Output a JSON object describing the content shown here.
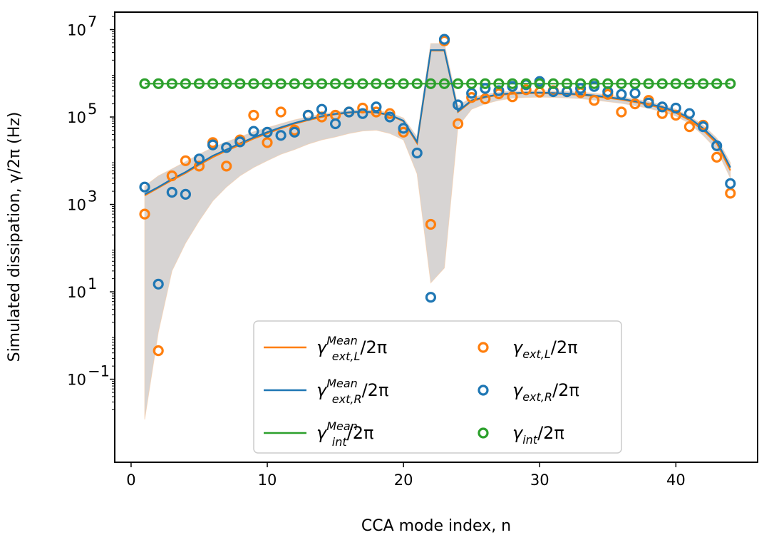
{
  "chart_data": {
    "type": "scatter",
    "xlabel": "CCA mode index, n",
    "ylabel": "Simulated dissipation, γ/2π (Hz)",
    "xlim": [
      -1.2,
      46
    ],
    "xticks": [
      0,
      10,
      20,
      30,
      40
    ],
    "ylim_log10": [
      -2.9,
      7.4
    ],
    "ytick_exponents": [
      -1,
      1,
      3,
      5,
      7
    ],
    "colors": {
      "orange": "#ff7f0e",
      "blue": "#1f77b4",
      "green": "#2ca02c",
      "band": "#8c8580"
    },
    "legend": {
      "location": "lower-center",
      "entries": [
        {
          "id": "mean_L",
          "marker": "line",
          "color": "#ff7f0e",
          "label": "γ_ext,L^Mean/2π"
        },
        {
          "id": "mean_R",
          "marker": "line",
          "color": "#1f77b4",
          "label": "γ_ext,R^Mean/2π"
        },
        {
          "id": "mean_int",
          "marker": "line",
          "color": "#2ca02c",
          "label": "γ_int^Mean/2π"
        },
        {
          "id": "ext_L",
          "marker": "circle",
          "color": "#ff7f0e",
          "label": "γ_ext,L/2π"
        },
        {
          "id": "ext_R",
          "marker": "circle",
          "color": "#1f77b4",
          "label": "γ_ext,R/2π"
        },
        {
          "id": "int",
          "marker": "circle",
          "color": "#2ca02c",
          "label": "γ_int/2π"
        }
      ]
    },
    "series": [
      {
        "name": "γ_ext,L/2π",
        "kind": "scatter",
        "color": "#ff7f0e",
        "x": [
          1,
          2,
          3,
          4,
          5,
          6,
          7,
          8,
          9,
          10,
          11,
          12,
          13,
          14,
          15,
          16,
          17,
          18,
          19,
          20,
          22,
          23,
          24,
          25,
          26,
          27,
          28,
          29,
          30,
          31,
          32,
          33,
          34,
          35,
          36,
          37,
          38,
          39,
          40,
          41,
          42,
          43,
          44
        ],
        "y": [
          600,
          0.45,
          4500,
          10000,
          7500,
          26000,
          7500,
          30000,
          110000,
          26000,
          130000,
          50000,
          110000,
          100000,
          110000,
          130000,
          160000,
          130000,
          120000,
          45000,
          350,
          5500000,
          70000,
          280000,
          260000,
          340000,
          290000,
          420000,
          370000,
          400000,
          380000,
          360000,
          240000,
          330000,
          130000,
          200000,
          240000,
          120000,
          110000,
          60000,
          65000,
          12000,
          1800
        ]
      },
      {
        "name": "γ_ext,R/2π",
        "kind": "scatter",
        "color": "#1f77b4",
        "x": [
          1,
          2,
          3,
          4,
          5,
          6,
          7,
          8,
          9,
          10,
          11,
          12,
          13,
          14,
          15,
          16,
          17,
          18,
          19,
          20,
          21,
          22,
          23,
          24,
          25,
          26,
          27,
          28,
          29,
          30,
          31,
          32,
          33,
          34,
          35,
          36,
          37,
          38,
          39,
          40,
          41,
          42,
          43,
          44
        ],
        "y": [
          2500,
          15,
          1900,
          1700,
          11000,
          23000,
          20000,
          27000,
          47000,
          45000,
          38000,
          45000,
          110000,
          150000,
          70000,
          130000,
          120000,
          170000,
          100000,
          55000,
          15000,
          7.5,
          6000000,
          190000,
          350000,
          450000,
          400000,
          500000,
          550000,
          650000,
          380000,
          380000,
          450000,
          500000,
          380000,
          330000,
          350000,
          210000,
          170000,
          160000,
          120000,
          60000,
          22000,
          3000
        ]
      },
      {
        "name": "γ_int/2π",
        "kind": "scatter",
        "color": "#2ca02c",
        "x": [
          1,
          2,
          3,
          4,
          5,
          6,
          7,
          8,
          9,
          10,
          11,
          12,
          13,
          14,
          15,
          16,
          17,
          18,
          19,
          20,
          21,
          22,
          23,
          24,
          25,
          26,
          27,
          28,
          29,
          30,
          31,
          32,
          33,
          34,
          35,
          36,
          37,
          38,
          39,
          40,
          41,
          42,
          43,
          44
        ],
        "y": [
          580000,
          580000,
          580000,
          580000,
          580000,
          580000,
          580000,
          580000,
          580000,
          580000,
          580000,
          580000,
          580000,
          580000,
          580000,
          580000,
          580000,
          580000,
          580000,
          580000,
          580000,
          580000,
          580000,
          580000,
          580000,
          580000,
          580000,
          580000,
          580000,
          580000,
          580000,
          580000,
          580000,
          580000,
          580000,
          580000,
          580000,
          580000,
          580000,
          580000,
          580000,
          580000,
          580000,
          580000
        ]
      },
      {
        "name": "γ_ext,L^Mean/2π",
        "kind": "line",
        "color": "#ff7f0e",
        "x": [
          1,
          2,
          3,
          4,
          5,
          6,
          7,
          8,
          9,
          10,
          11,
          12,
          13,
          14,
          15,
          16,
          17,
          18,
          19,
          20,
          21,
          22,
          23,
          24,
          25,
          26,
          27,
          28,
          29,
          30,
          31,
          32,
          33,
          34,
          35,
          36,
          37,
          38,
          39,
          40,
          41,
          42,
          43,
          44
        ],
        "y": [
          1600,
          2400,
          3600,
          5200,
          8000,
          12000,
          17000,
          23000,
          32000,
          42000,
          55000,
          70000,
          85000,
          100000,
          115000,
          125000,
          130000,
          125000,
          110000,
          80000,
          25000,
          3300000,
          3300000,
          130000,
          230000,
          280000,
          320000,
          340000,
          350000,
          350000,
          345000,
          335000,
          320000,
          300000,
          275000,
          250000,
          220000,
          190000,
          160000,
          125000,
          85000,
          50000,
          25000,
          6000
        ]
      },
      {
        "name": "γ_ext,R^Mean/2π",
        "kind": "line",
        "color": "#1f77b4",
        "x": [
          1,
          2,
          3,
          4,
          5,
          6,
          7,
          8,
          9,
          10,
          11,
          12,
          13,
          14,
          15,
          16,
          17,
          18,
          19,
          20,
          21,
          22,
          23,
          24,
          25,
          26,
          27,
          28,
          29,
          30,
          31,
          32,
          33,
          34,
          35,
          36,
          37,
          38,
          39,
          40,
          41,
          42,
          43,
          44
        ],
        "y": [
          1700,
          2500,
          3800,
          5500,
          8500,
          13000,
          18000,
          25000,
          34000,
          45000,
          58000,
          73000,
          88000,
          105000,
          118000,
          128000,
          133000,
          128000,
          112000,
          82000,
          27000,
          3400000,
          3400000,
          135000,
          240000,
          290000,
          330000,
          350000,
          360000,
          360000,
          355000,
          345000,
          330000,
          310000,
          285000,
          260000,
          230000,
          200000,
          170000,
          135000,
          95000,
          55000,
          28000,
          7000
        ]
      },
      {
        "name": "γ_int^Mean/2π",
        "kind": "line",
        "color": "#2ca02c",
        "x": [
          1,
          44
        ],
        "y": [
          580000,
          580000
        ]
      },
      {
        "name": "confidence band",
        "kind": "band",
        "color": "#8c8580",
        "x": [
          1,
          2,
          3,
          4,
          5,
          6,
          7,
          8,
          9,
          10,
          11,
          12,
          13,
          14,
          15,
          16,
          17,
          18,
          19,
          20,
          21,
          22,
          23,
          24,
          25,
          26,
          27,
          28,
          29,
          30,
          31,
          32,
          33,
          34,
          35,
          36,
          37,
          38,
          39,
          40,
          41,
          42,
          43,
          44
        ],
        "upper": [
          2600,
          4500,
          6500,
          9500,
          14000,
          20000,
          27000,
          35000,
          46000,
          57000,
          70000,
          86000,
          100000,
          118000,
          130000,
          142000,
          148000,
          142000,
          125000,
          95000,
          35000,
          4800000,
          4800000,
          180000,
          280000,
          330000,
          370000,
          390000,
          400000,
          400000,
          395000,
          385000,
          370000,
          350000,
          320000,
          290000,
          260000,
          225000,
          190000,
          150000,
          105000,
          65000,
          33000,
          9000
        ],
        "lower": [
          0.012,
          1.2,
          30,
          130,
          420,
          1200,
          2500,
          4500,
          7000,
          10000,
          14000,
          18000,
          24000,
          30000,
          35000,
          42000,
          48000,
          50000,
          42000,
          30000,
          5000,
          16,
          35,
          60000,
          150000,
          200000,
          240000,
          270000,
          280000,
          285000,
          280000,
          272000,
          262000,
          245000,
          225000,
          205000,
          182000,
          158000,
          132000,
          105000,
          72000,
          38000,
          18000,
          4000
        ]
      }
    ]
  }
}
